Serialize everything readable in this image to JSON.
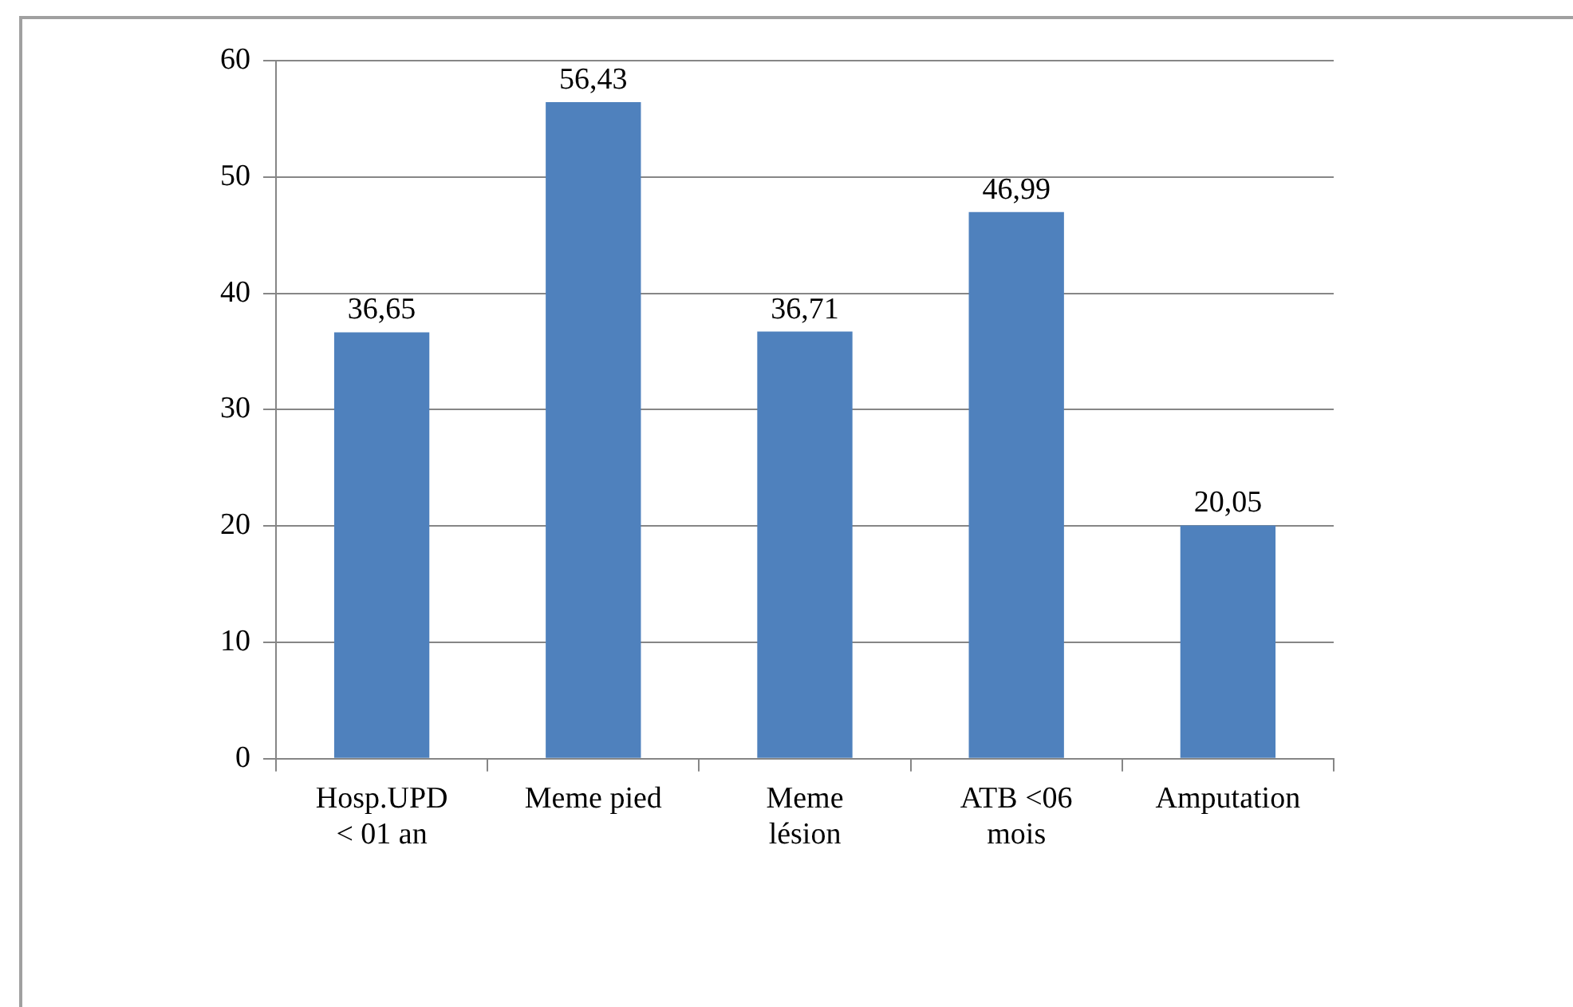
{
  "chart_data": {
    "type": "bar",
    "categories": [
      "Hosp.UPD\n< 01 an",
      "Meme pied",
      "Meme\nlésion",
      "ATB <06\nmois",
      "Amputation"
    ],
    "values": [
      36.65,
      56.43,
      36.71,
      46.99,
      20.05
    ],
    "color": "#4f81bd",
    "value_labels": [
      "36,65",
      "56,43",
      "36,71",
      "46,99",
      "20,05"
    ],
    "ylim": [
      0,
      60
    ],
    "yticks": [
      0,
      10,
      20,
      30,
      40,
      50,
      60
    ],
    "grid": "y",
    "legend": false
  }
}
